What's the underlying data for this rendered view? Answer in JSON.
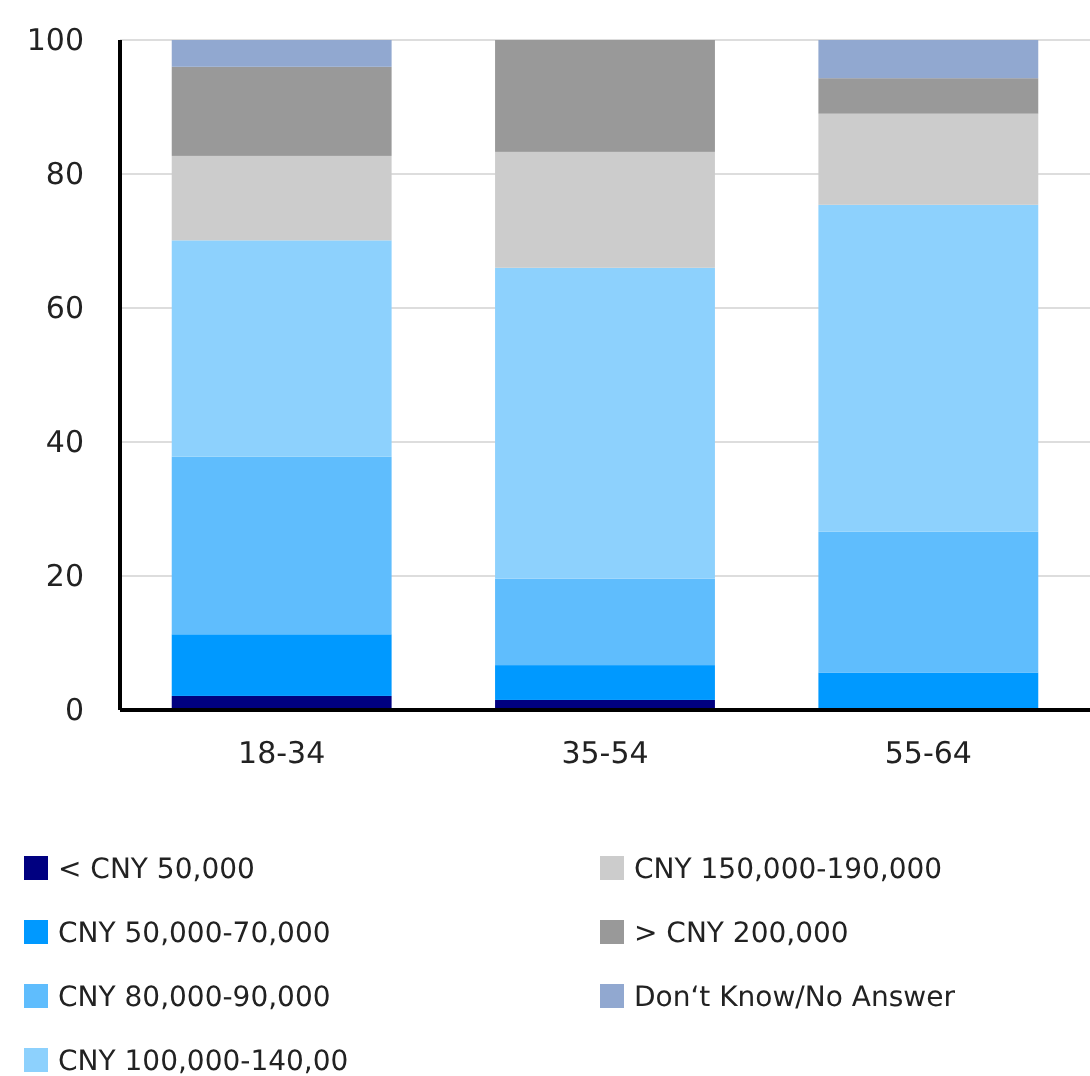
{
  "chart_data": {
    "type": "bar",
    "stacked": true,
    "categories": [
      "18-34",
      "35-54",
      "55-64"
    ],
    "ylim": [
      0,
      100
    ],
    "yticks": [
      0,
      20,
      40,
      60,
      80,
      100
    ],
    "grid": "y",
    "legend": "bottom",
    "series": [
      {
        "name": "< CNY 50,000",
        "color": "#000080",
        "values": [
          2.1,
          1.5,
          0
        ]
      },
      {
        "name": "CNY 50,000-70,000",
        "color": "#0099ff",
        "values": [
          9.2,
          5.2,
          5.6
        ]
      },
      {
        "name": "CNY 80,000-90,000",
        "color": "#5fbdfd",
        "values": [
          26.5,
          12.9,
          21.0
        ]
      },
      {
        "name": "CNY 100,000-140,00",
        "color": "#8dd1fd",
        "values": [
          32.3,
          46.4,
          48.8
        ]
      },
      {
        "name": "CNY 150,000-190,000",
        "color": "#cccccc",
        "values": [
          12.6,
          17.3,
          13.6
        ]
      },
      {
        "name": "> CNY 200,000",
        "color": "#999999",
        "values": [
          13.3,
          16.7,
          5.3
        ]
      },
      {
        "name": "Don‘t Know/No Answer",
        "color": "#91a8d0",
        "values": [
          4.0,
          0,
          5.7
        ]
      }
    ]
  }
}
